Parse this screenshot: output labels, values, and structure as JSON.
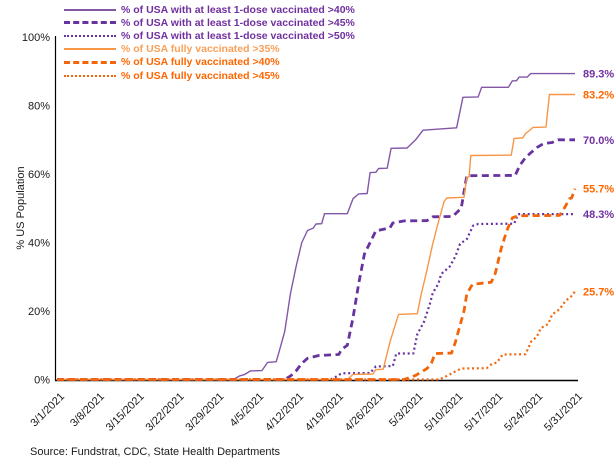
{
  "chart_data": {
    "type": "line",
    "title": "",
    "grid": false,
    "legend_position": "top-left",
    "source": "Source: Fundstrat, CDC, State Health Departments",
    "x_axis": {
      "tick_labels": [
        "3/1/2021",
        "3/8/2021",
        "3/15/2021",
        "3/22/2021",
        "3/29/2021",
        "4/5/2021",
        "4/12/2021",
        "4/19/2021",
        "4/26/2021",
        "5/3/2021",
        "5/10/2021",
        "5/17/2021",
        "5/24/2021",
        "5/31/2021"
      ],
      "tick_interval_days": 7,
      "range_days": [
        0,
        91
      ]
    },
    "y_axis": {
      "label": "% US Population",
      "ticks": [
        {
          "label": "0%",
          "value": 0
        },
        {
          "label": "20%",
          "value": 20
        },
        {
          "label": "40%",
          "value": 40
        },
        {
          "label": "60%",
          "value": 60
        },
        {
          "label": "80%",
          "value": 80
        },
        {
          "label": "100%",
          "value": 100
        }
      ],
      "range": [
        0,
        100
      ]
    },
    "series": [
      {
        "name": "% of USA with at least 1-dose vaccinated >40%",
        "color": "#8257A8",
        "legend_text_color": "#7030A0",
        "dash": "solid",
        "width": 1.4,
        "end_label": "89.3%",
        "end_label_color": "#7030A0",
        "points": [
          [
            0,
            0
          ],
          [
            31,
            0
          ],
          [
            32,
            1
          ],
          [
            33,
            1.5
          ],
          [
            34,
            2.5
          ],
          [
            36,
            2.6
          ],
          [
            37,
            5
          ],
          [
            38.5,
            5.2
          ],
          [
            39,
            8
          ],
          [
            40,
            14
          ],
          [
            41,
            25
          ],
          [
            42,
            33
          ],
          [
            43,
            40
          ],
          [
            44,
            43.5
          ],
          [
            45,
            44.2
          ],
          [
            45.5,
            45.4
          ],
          [
            46.5,
            45.5
          ],
          [
            47,
            48.4
          ],
          [
            51,
            48.4
          ],
          [
            52,
            52.8
          ],
          [
            53,
            54.2
          ],
          [
            54.5,
            54.3
          ],
          [
            55,
            60.4
          ],
          [
            56,
            60.5
          ],
          [
            56.5,
            61.6
          ],
          [
            58,
            61.7
          ],
          [
            58.7,
            67.5
          ],
          [
            61.5,
            67.6
          ],
          [
            63,
            70
          ],
          [
            64.3,
            72.8
          ],
          [
            70.2,
            73.5
          ],
          [
            71.3,
            82.4
          ],
          [
            74,
            82.5
          ],
          [
            74.6,
            85.3
          ],
          [
            79.3,
            85.3
          ],
          [
            80,
            87.2
          ],
          [
            80.7,
            87.2
          ],
          [
            81.2,
            88.3
          ],
          [
            82.6,
            88.3
          ],
          [
            83.2,
            89.3
          ],
          [
            91,
            89.3
          ]
        ]
      },
      {
        "name": "% of USA with at least 1-dose vaccinated >45%",
        "color": "#6633A0",
        "legend_text_color": "#7030A0",
        "dash": "dashed",
        "width": 2.8,
        "end_label": "70.0%",
        "end_label_color": "#7030A0",
        "points": [
          [
            0,
            0
          ],
          [
            40,
            0
          ],
          [
            41,
            1
          ],
          [
            42,
            2.5
          ],
          [
            43,
            4.7
          ],
          [
            44,
            6.2
          ],
          [
            46,
            7
          ],
          [
            49.5,
            7.3
          ],
          [
            50,
            8.8
          ],
          [
            51,
            10
          ],
          [
            52,
            18
          ],
          [
            53,
            28
          ],
          [
            54,
            36.6
          ],
          [
            55,
            40
          ],
          [
            56,
            43.4
          ],
          [
            58.5,
            44.3
          ],
          [
            59,
            45.7
          ],
          [
            61,
            46.3
          ],
          [
            65,
            46.4
          ],
          [
            66,
            47.5
          ],
          [
            69.5,
            47.6
          ],
          [
            70,
            48.4
          ],
          [
            71,
            50
          ],
          [
            72,
            59.5
          ],
          [
            80.5,
            59.6
          ],
          [
            81.3,
            62.5
          ],
          [
            82.3,
            64.8
          ],
          [
            83.3,
            66.3
          ],
          [
            84.3,
            67.7
          ],
          [
            85.5,
            68.9
          ],
          [
            87,
            69.2
          ],
          [
            88,
            70
          ],
          [
            91,
            70
          ]
        ]
      },
      {
        "name": "% of USA with at least 1-dose vaccinated >50%",
        "color": "#6633A0",
        "legend_text_color": "#7030A0",
        "dash": "dotted",
        "width": 2.2,
        "end_label": "48.3%",
        "end_label_color": "#7030A0",
        "points": [
          [
            0,
            0
          ],
          [
            48,
            0
          ],
          [
            49,
            0.8
          ],
          [
            50,
            1.8
          ],
          [
            55,
            1.9
          ],
          [
            56,
            3.8
          ],
          [
            59,
            3.9
          ],
          [
            59.6,
            7.6
          ],
          [
            62.6,
            7.6
          ],
          [
            63.3,
            13.2
          ],
          [
            64.5,
            17
          ],
          [
            65.5,
            22
          ],
          [
            66,
            25.2
          ],
          [
            67,
            28
          ],
          [
            67.5,
            30.8
          ],
          [
            69,
            33
          ],
          [
            70,
            36
          ],
          [
            70.8,
            39.6
          ],
          [
            72,
            41
          ],
          [
            73.1,
            44.9
          ],
          [
            74,
            45.4
          ],
          [
            80.3,
            45.5
          ],
          [
            81,
            48.3
          ],
          [
            91,
            48.3
          ]
        ]
      },
      {
        "name": "% of USA fully vaccinated >35%",
        "color": "#F79646",
        "legend_text_color": "#F9A158",
        "dash": "solid",
        "width": 1.4,
        "end_label": "83.2%",
        "end_label_color": "#FF6600",
        "points": [
          [
            0,
            0
          ],
          [
            51,
            0
          ],
          [
            52,
            1.5
          ],
          [
            55.5,
            1.6
          ],
          [
            56,
            2.9
          ],
          [
            57.3,
            3
          ],
          [
            58.5,
            11
          ],
          [
            60,
            19
          ],
          [
            63.3,
            19.2
          ],
          [
            64,
            25
          ],
          [
            65,
            32
          ],
          [
            66,
            39.6
          ],
          [
            67,
            46
          ],
          [
            68,
            52
          ],
          [
            68.5,
            53
          ],
          [
            71.5,
            53.2
          ],
          [
            72,
            59
          ],
          [
            72.4,
            59.2
          ],
          [
            72.7,
            65.4
          ],
          [
            79.8,
            65.5
          ],
          [
            80.3,
            70.4
          ],
          [
            81.8,
            70.5
          ],
          [
            82.3,
            71.8
          ],
          [
            83,
            72.7
          ],
          [
            83.6,
            73.6
          ],
          [
            85.9,
            73.7
          ],
          [
            86.5,
            83.2
          ],
          [
            91,
            83.2
          ]
        ]
      },
      {
        "name": "% of USA fully vaccinated >40%",
        "color": "#F2650A",
        "legend_text_color": "#FF6600",
        "dash": "dashed",
        "width": 2.8,
        "end_label": "55.7%",
        "end_label_color": "#FF6600",
        "points": [
          [
            0,
            0
          ],
          [
            61,
            0
          ],
          [
            62,
            0.6
          ],
          [
            63,
            1.2
          ],
          [
            64,
            2.2
          ],
          [
            65,
            3.2
          ],
          [
            65.7,
            4.4
          ],
          [
            66.4,
            7.6
          ],
          [
            69.3,
            7.7
          ],
          [
            70,
            11
          ],
          [
            70.5,
            14
          ],
          [
            71.5,
            20
          ],
          [
            72,
            25
          ],
          [
            73,
            27.8
          ],
          [
            76.3,
            28.4
          ],
          [
            77,
            31
          ],
          [
            78,
            38
          ],
          [
            79,
            43.4
          ],
          [
            80,
            47.2
          ],
          [
            81,
            47.8
          ],
          [
            88.3,
            47.9
          ],
          [
            89.3,
            50.5
          ],
          [
            90,
            52.8
          ],
          [
            90.4,
            53
          ],
          [
            91,
            55.7
          ]
        ]
      },
      {
        "name": "% of USA fully vaccinated >45%",
        "color": "#F2650A",
        "legend_text_color": "#FF6600",
        "dash": "dotted",
        "width": 2.2,
        "end_label": "25.7%",
        "end_label_color": "#FF6600",
        "points": [
          [
            0,
            0
          ],
          [
            67,
            0
          ],
          [
            68,
            0.6
          ],
          [
            69,
            1.5
          ],
          [
            70,
            2.4
          ],
          [
            71,
            3.2
          ],
          [
            75.5,
            3.3
          ],
          [
            76.3,
            4.4
          ],
          [
            77.3,
            5
          ],
          [
            78.3,
            7.3
          ],
          [
            82.3,
            7.4
          ],
          [
            83.3,
            11.1
          ],
          [
            84.3,
            12.5
          ],
          [
            85,
            15
          ],
          [
            86.3,
            16.2
          ],
          [
            87,
            19
          ],
          [
            88.3,
            20.5
          ],
          [
            89.3,
            22.9
          ],
          [
            90.3,
            24.2
          ],
          [
            91,
            25.7
          ]
        ]
      }
    ]
  }
}
